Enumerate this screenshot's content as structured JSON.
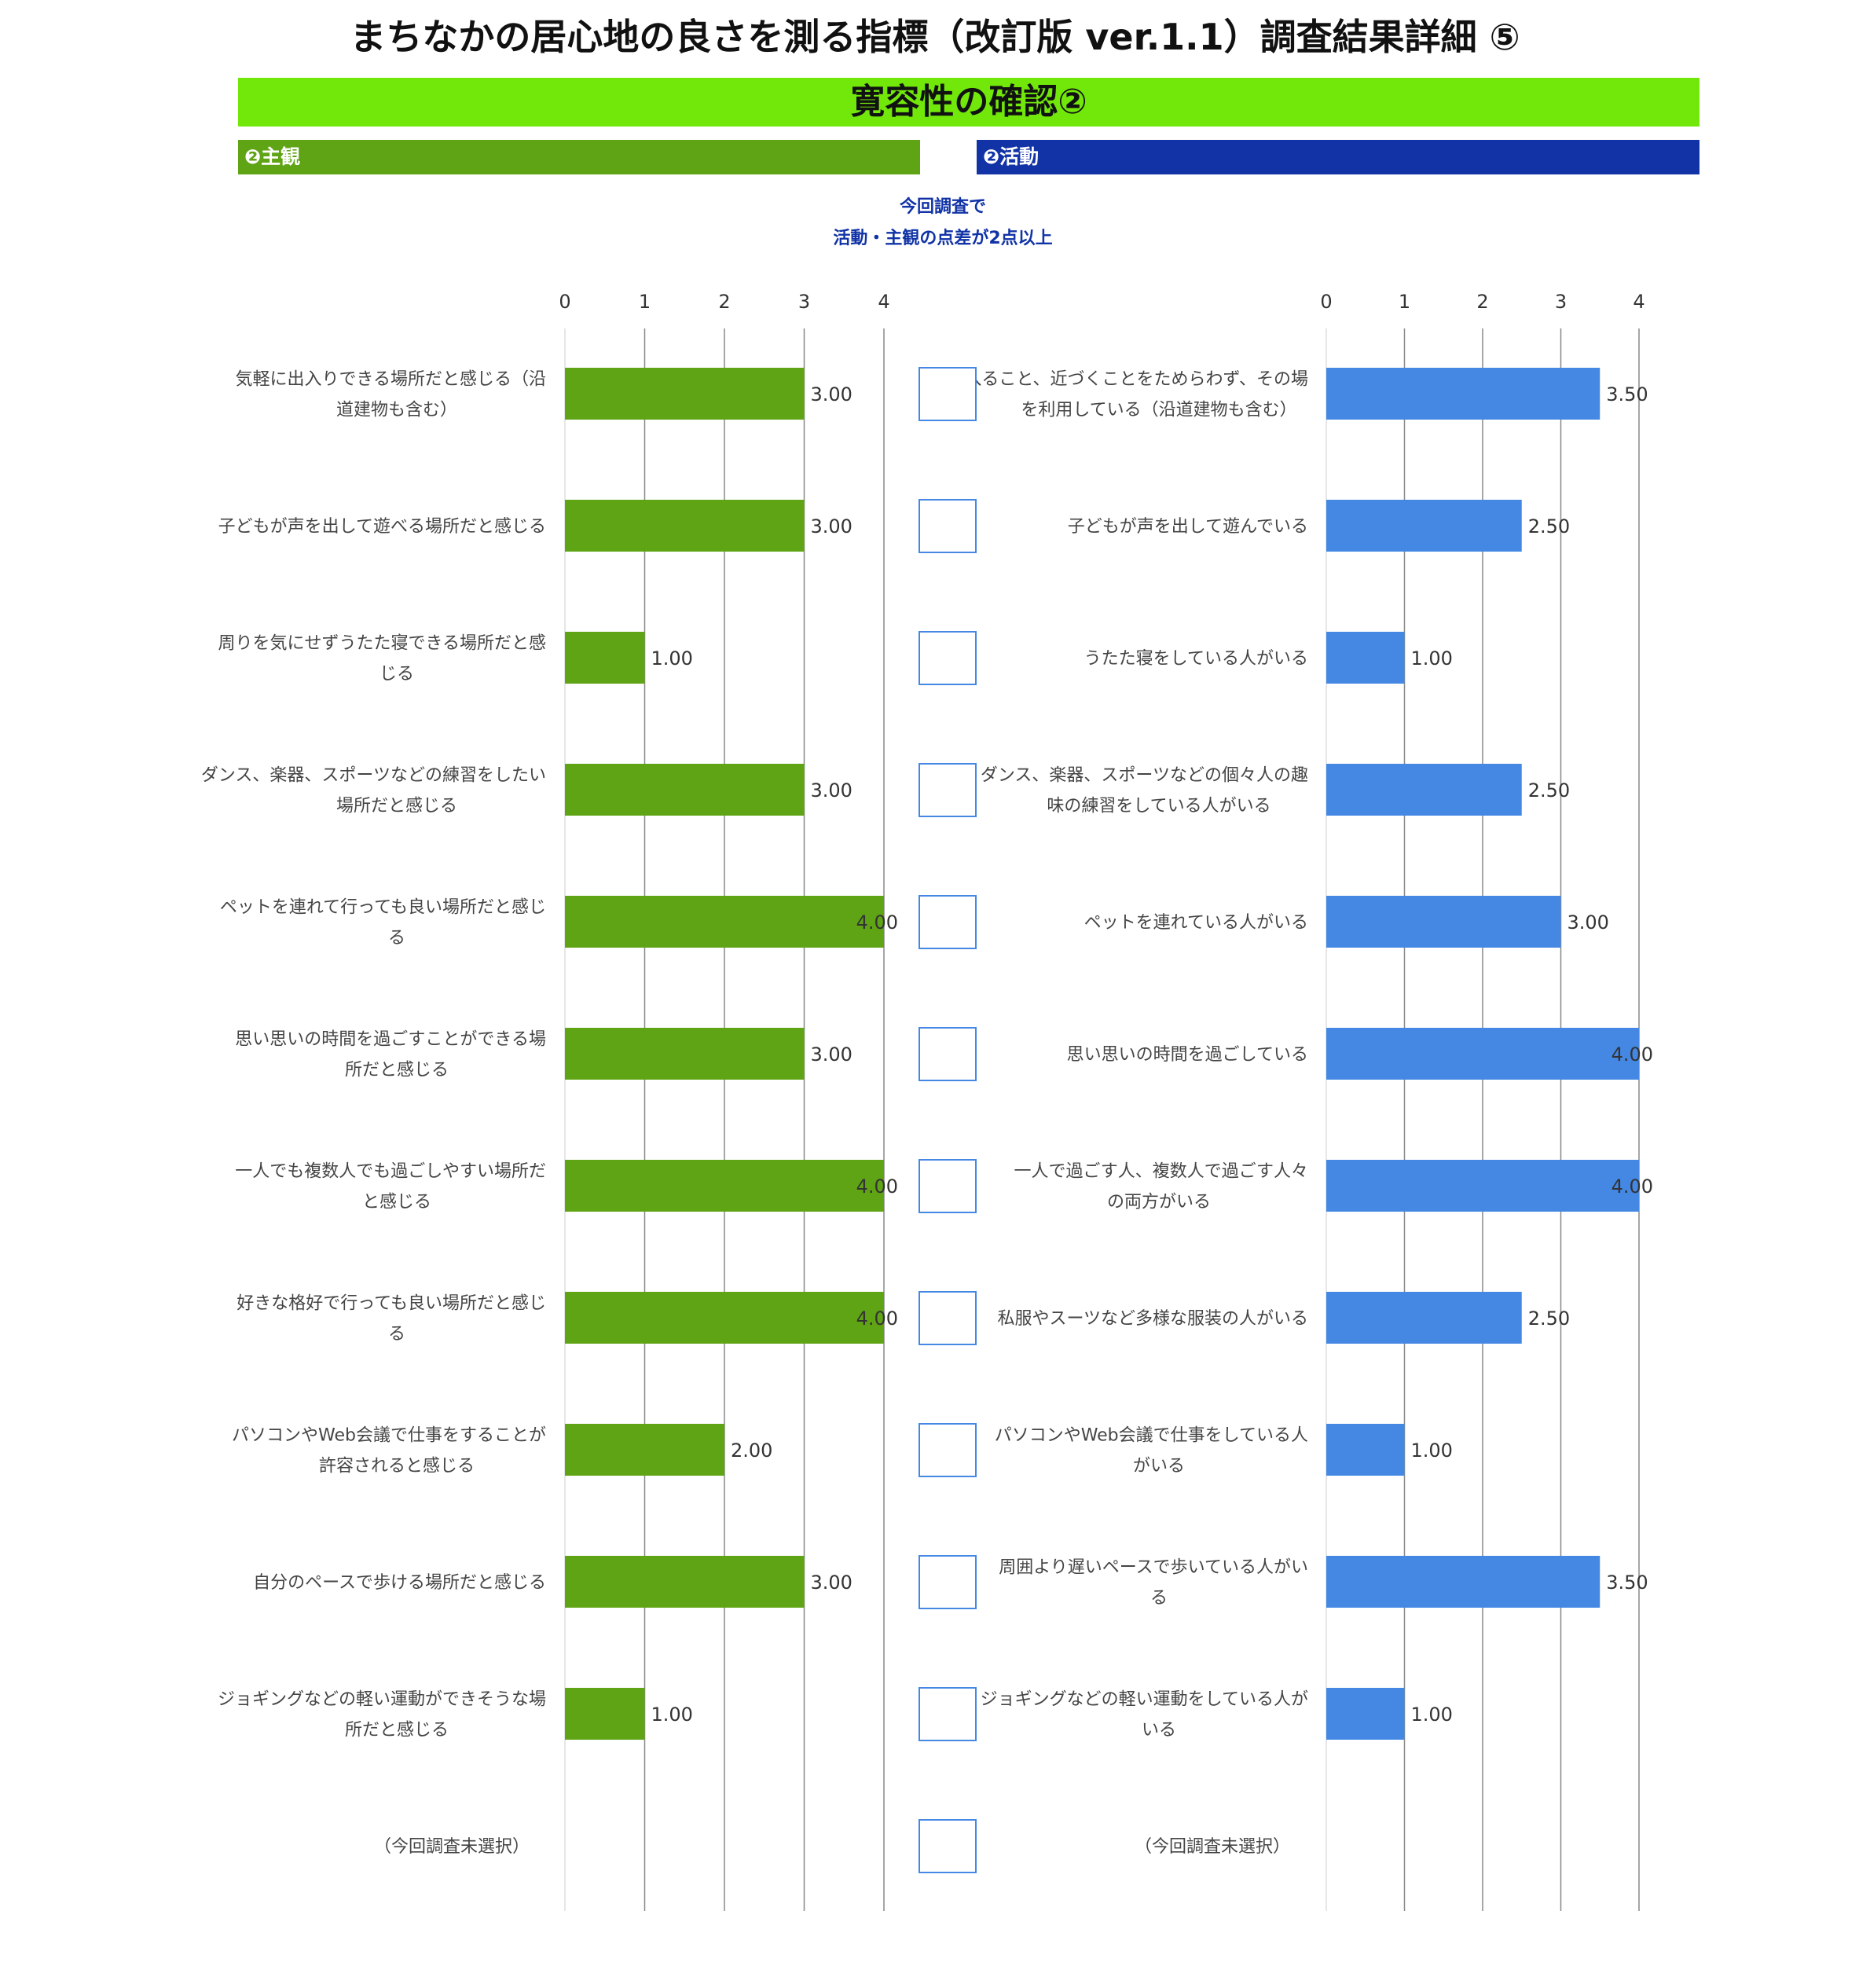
{
  "title": "まちなかの居心地の良さを測る指標（改訂版 ver.1.1）調査結果詳細 ⑤",
  "section_title": "寛容性の確認②",
  "left_panel": {
    "header": "❷主観"
  },
  "right_panel": {
    "header": "❷活動"
  },
  "criteria_note": [
    "今回調査で",
    "活動・主観の点差が2点以上"
  ],
  "colors": {
    "left_bar": "#5fa414",
    "right_bar": "#4488e4",
    "checkbox_border": "#4488e4",
    "banner": "#72e80a",
    "right_header": "#1133a6"
  },
  "chart_data": [
    {
      "type": "bar",
      "orientation": "horizontal",
      "panel": "❷主観",
      "xlim": [
        0,
        4
      ],
      "xticks": [
        "0",
        "1",
        "2",
        "3",
        "4"
      ],
      "categories": [
        [
          "気軽に出入りできる場所だと感じる（沿",
          "道建物も含む）"
        ],
        [
          "子どもが声を出して遊べる場所だと感じる"
        ],
        [
          "周りを気にせずうたた寝できる場所だと感",
          "じる"
        ],
        [
          "ダンス、楽器、スポーツなどの練習をしたい",
          "場所だと感じる"
        ],
        [
          "ペットを連れて行っても良い場所だと感じ",
          "る"
        ],
        [
          "思い思いの時間を過ごすことができる場",
          "所だと感じる"
        ],
        [
          "一人でも複数人でも過ごしやすい場所だ",
          "と感じる"
        ],
        [
          "好きな格好で行っても良い場所だと感じ",
          "る"
        ],
        [
          "パソコンやWeb会議で仕事をすることが",
          "許容されると感じる"
        ],
        [
          "自分のペースで歩ける場所だと感じる"
        ],
        [
          "ジョギングなどの軽い運動ができそうな場",
          "所だと感じる"
        ],
        [
          "（今回調査未選択）"
        ]
      ],
      "values": [
        3,
        3,
        1,
        3,
        4,
        3,
        4,
        4,
        2,
        3,
        1,
        null
      ],
      "value_labels": [
        "3.00",
        "3.00",
        "1.00",
        "3.00",
        "4.00",
        "3.00",
        "4.00",
        "4.00",
        "2.00",
        "3.00",
        "1.00",
        ""
      ],
      "grid": true
    },
    {
      "type": "bar",
      "orientation": "horizontal",
      "panel": "❷活動",
      "xlim": [
        0,
        4
      ],
      "xticks": [
        "0",
        "1",
        "2",
        "3",
        "4"
      ],
      "categories": [
        [
          "入ること、近づくことをためらわず、その場",
          "を利用している（沿道建物も含む）"
        ],
        [
          "子どもが声を出して遊んでいる"
        ],
        [
          "うたた寝をしている人がいる"
        ],
        [
          "ダンス、楽器、スポーツなどの個々人の趣",
          "味の練習をしている人がいる"
        ],
        [
          "ペットを連れている人がいる"
        ],
        [
          "思い思いの時間を過ごしている"
        ],
        [
          "一人で過ごす人、複数人で過ごす人々",
          "の両方がいる"
        ],
        [
          "私服やスーツなど多様な服装の人がいる"
        ],
        [
          "パソコンやWeb会議で仕事をしている人",
          "がいる"
        ],
        [
          "周囲より遅いペースで歩いている人がい",
          "る"
        ],
        [
          "ジョギングなどの軽い運動をしている人が",
          "いる"
        ],
        [
          "（今回調査未選択）"
        ]
      ],
      "values": [
        3.5,
        2.5,
        1,
        2.5,
        3,
        4,
        4,
        2.5,
        1,
        3.5,
        1,
        null
      ],
      "value_labels": [
        "3.50",
        "2.50",
        "1.00",
        "2.50",
        "3.00",
        "4.00",
        "4.00",
        "2.50",
        "1.00",
        "3.50",
        "1.00",
        ""
      ],
      "grid": true
    }
  ],
  "checkboxes": [
    false,
    false,
    false,
    false,
    false,
    false,
    false,
    false,
    false,
    false,
    false,
    false
  ]
}
